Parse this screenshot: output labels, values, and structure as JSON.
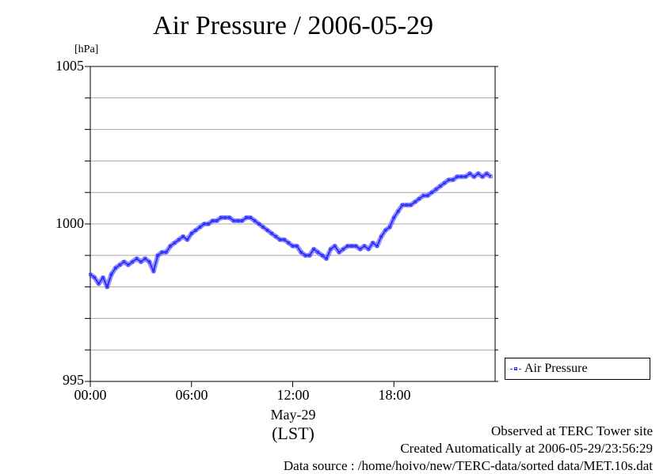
{
  "chart_data": {
    "type": "line",
    "title": "Air Pressure / 2006-05-29",
    "y_unit": "[hPa]",
    "ylim": [
      995,
      1005
    ],
    "y_ticks": [
      "1005",
      "1000",
      "995"
    ],
    "y_gridlines": [
      995,
      996,
      997,
      998,
      999,
      1000,
      1001,
      1002,
      1003,
      1004,
      1005
    ],
    "xlim": [
      "00:00",
      "24:00"
    ],
    "x_ticks": [
      "00:00",
      "06:00",
      "12:00",
      "18:00"
    ],
    "x_date_label": "May-29",
    "x_zone_label": "(LST)",
    "grid": true,
    "legend_position": "bottom-right, outside plot",
    "series": [
      {
        "name": "Air Pressure",
        "color": "#3333ff",
        "x": [
          "00:00",
          "00:15",
          "00:30",
          "00:45",
          "01:00",
          "01:15",
          "01:30",
          "01:45",
          "02:00",
          "02:15",
          "02:30",
          "02:45",
          "03:00",
          "03:15",
          "03:30",
          "03:45",
          "04:00",
          "04:15",
          "04:30",
          "04:45",
          "05:00",
          "05:15",
          "05:30",
          "05:45",
          "06:00",
          "06:15",
          "06:30",
          "06:45",
          "07:00",
          "07:15",
          "07:30",
          "07:45",
          "08:00",
          "08:15",
          "08:30",
          "08:45",
          "09:00",
          "09:15",
          "09:30",
          "09:45",
          "10:00",
          "10:15",
          "10:30",
          "10:45",
          "11:00",
          "11:15",
          "11:30",
          "11:45",
          "12:00",
          "12:15",
          "12:30",
          "12:45",
          "13:00",
          "13:15",
          "13:30",
          "13:45",
          "14:00",
          "14:15",
          "14:30",
          "14:45",
          "15:00",
          "15:15",
          "15:30",
          "15:45",
          "16:00",
          "16:15",
          "16:30",
          "16:45",
          "17:00",
          "17:15",
          "17:30",
          "17:45",
          "18:00",
          "18:15",
          "18:30",
          "18:45",
          "19:00",
          "19:15",
          "19:30",
          "19:45",
          "20:00",
          "20:15",
          "20:30",
          "20:45",
          "21:00",
          "21:15",
          "21:30",
          "21:45",
          "22:00",
          "22:15",
          "22:30",
          "22:45",
          "23:00",
          "23:15",
          "23:30",
          "23:45"
        ],
        "values": [
          998.4,
          998.3,
          998.1,
          998.3,
          998.0,
          998.4,
          998.6,
          998.7,
          998.8,
          998.7,
          998.8,
          998.9,
          998.8,
          998.9,
          998.8,
          998.5,
          999.0,
          999.1,
          999.1,
          999.3,
          999.4,
          999.5,
          999.6,
          999.5,
          999.7,
          999.8,
          999.9,
          1000.0,
          1000.0,
          1000.1,
          1000.1,
          1000.2,
          1000.2,
          1000.2,
          1000.1,
          1000.1,
          1000.1,
          1000.2,
          1000.2,
          1000.1,
          1000.0,
          999.9,
          999.8,
          999.7,
          999.6,
          999.5,
          999.5,
          999.4,
          999.3,
          999.3,
          999.1,
          999.0,
          999.0,
          999.2,
          999.1,
          999.0,
          998.9,
          999.2,
          999.3,
          999.1,
          999.2,
          999.3,
          999.3,
          999.3,
          999.2,
          999.3,
          999.2,
          999.4,
          999.3,
          999.6,
          999.8,
          999.9,
          1000.2,
          1000.4,
          1000.6,
          1000.6,
          1000.6,
          1000.7,
          1000.8,
          1000.9,
          1000.9,
          1001.0,
          1001.1,
          1001.2,
          1001.3,
          1001.4,
          1001.4,
          1001.5,
          1001.5,
          1001.5,
          1001.6,
          1001.5,
          1001.6,
          1001.5,
          1001.6,
          1001.5
        ]
      }
    ]
  },
  "legend": {
    "label": "Air Pressure"
  },
  "footer": {
    "site": "Observed at TERC Tower site",
    "created": "Created Automatically at 2006-05-29/23:56:29",
    "source": "Data source : /home/hoivo/new/TERC-data/sorted  data/MET.10s.dat"
  }
}
